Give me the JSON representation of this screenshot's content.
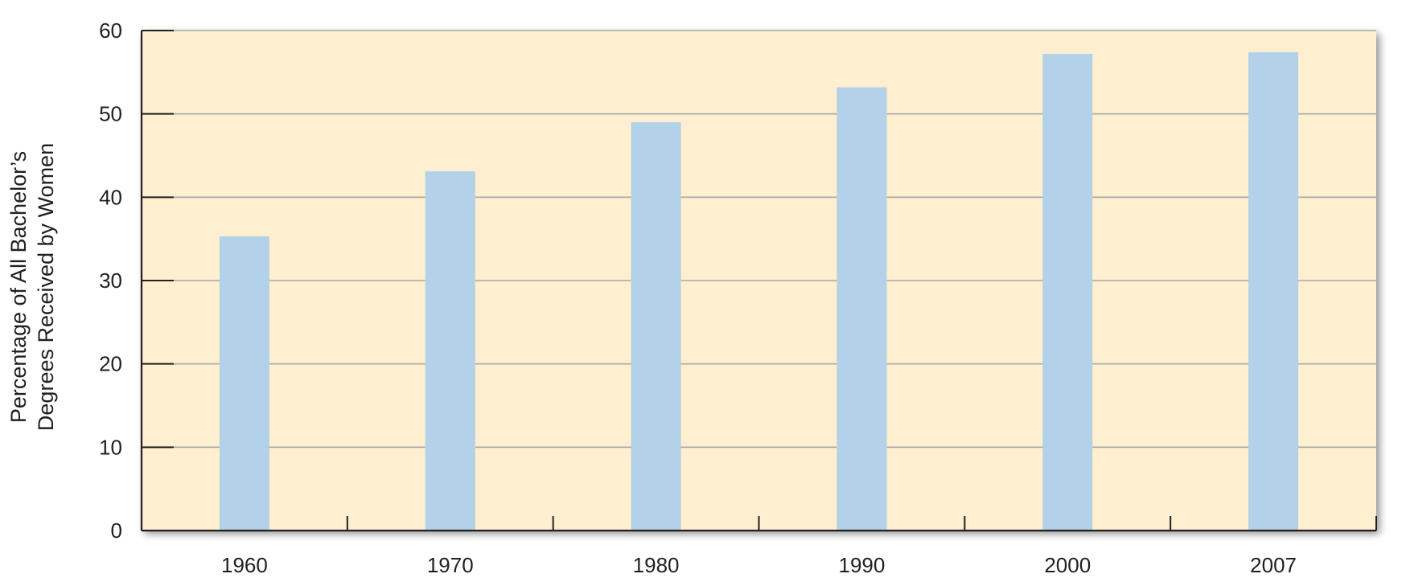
{
  "chart_data": {
    "type": "bar",
    "categories": [
      "1960",
      "1970",
      "1980",
      "1990",
      "2000",
      "2007"
    ],
    "values": [
      35.3,
      43.1,
      49.0,
      53.2,
      57.2,
      57.4
    ],
    "title": "",
    "xlabel": "",
    "ylabel_lines": [
      "Percentage of All Bachelor’s",
      "Degrees Received by Women"
    ],
    "ylim": [
      0,
      60
    ],
    "yticks": [
      0,
      10,
      20,
      30,
      40,
      50,
      60
    ],
    "grid": true,
    "colors": {
      "bar": "#b3d1e8",
      "plot_background": "#fdefcf",
      "gridline": "#a9a9a9",
      "axis": "#231f20"
    }
  }
}
